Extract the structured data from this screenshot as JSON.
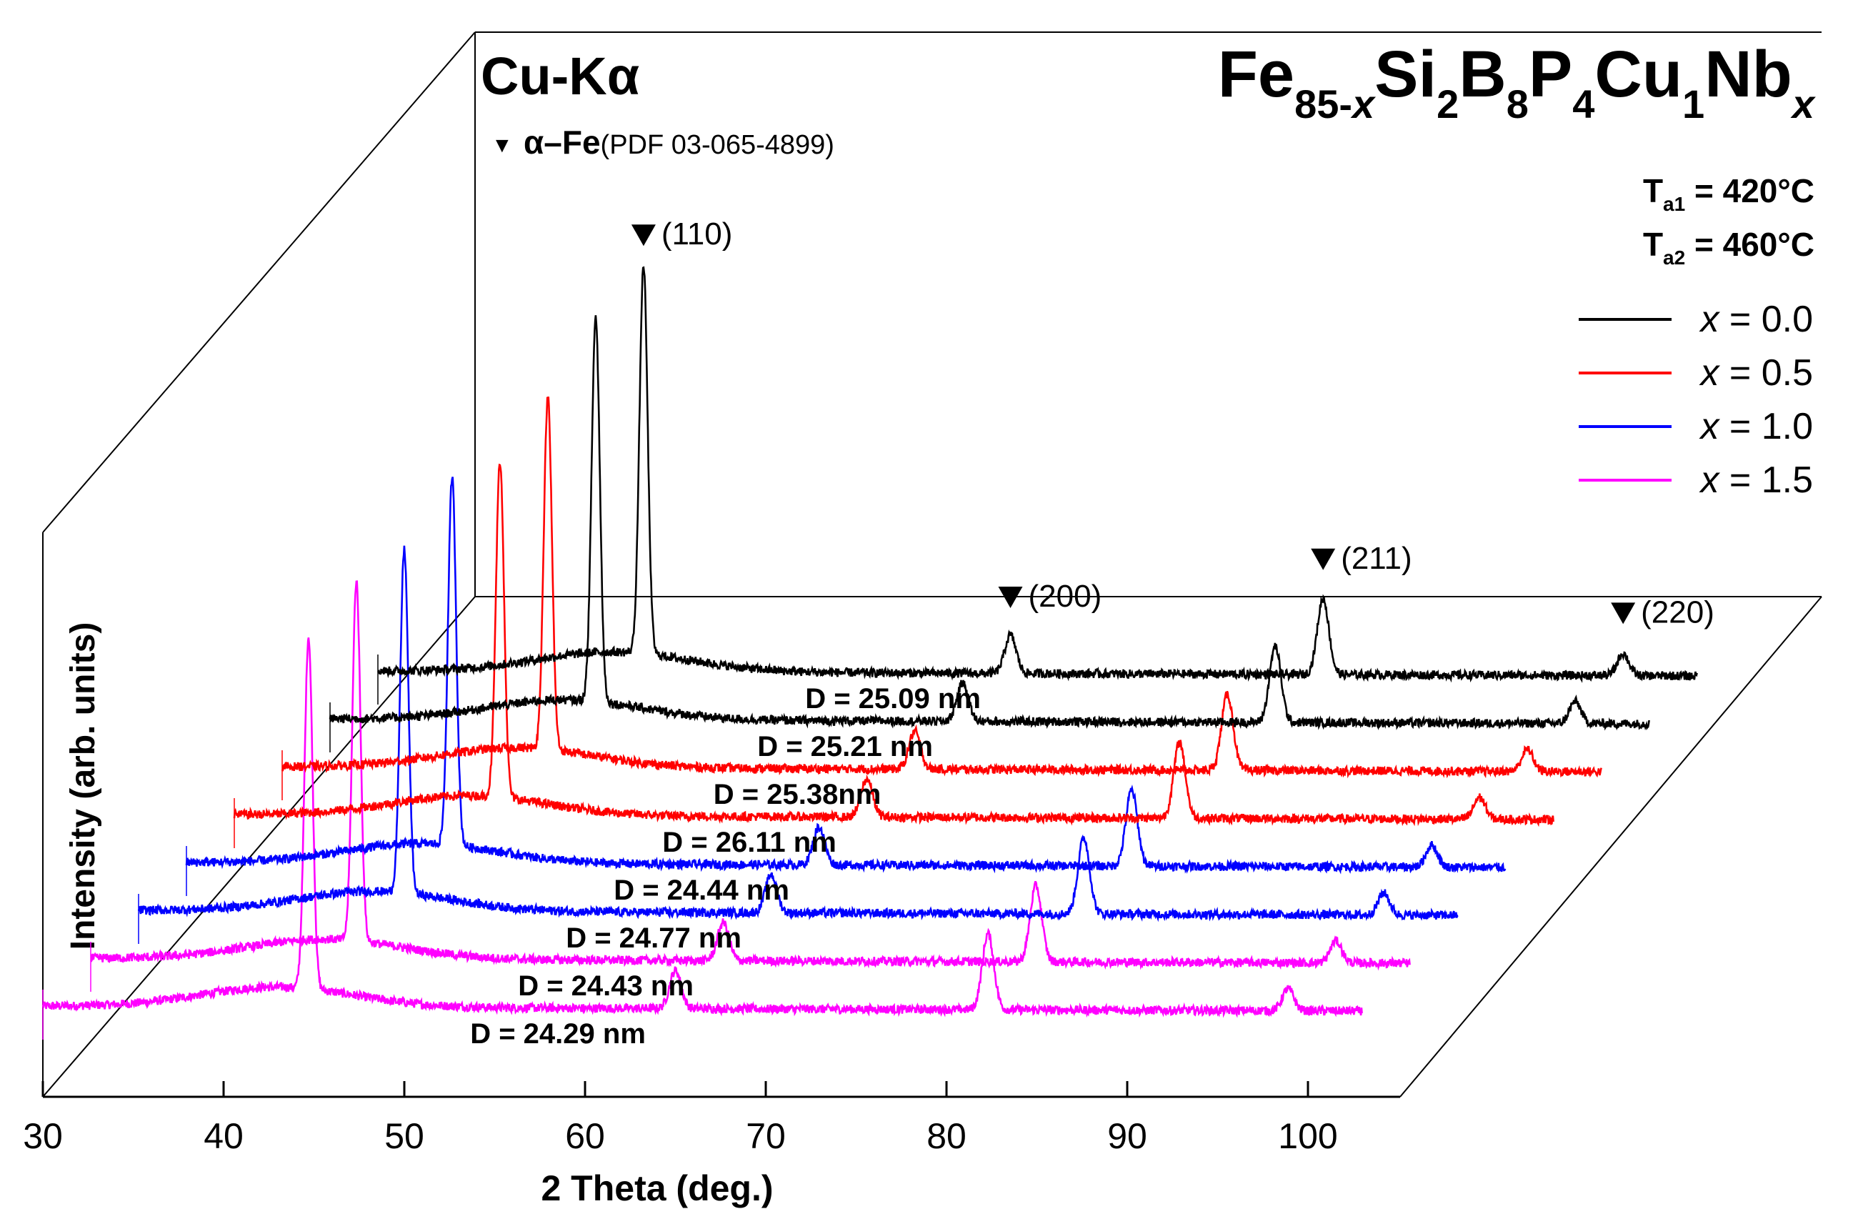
{
  "chart_data": {
    "type": "line",
    "subtype": "waterfall-3d-offset",
    "title": "Fe85-xSi2B8P4Cu1Nbx",
    "radiation": "Cu-Kα",
    "xlabel": "2 Theta (deg.)",
    "ylabel": "Intensity (arb. units)",
    "xlim": [
      30,
      103
    ],
    "xticks": [
      30,
      40,
      50,
      60,
      70,
      80,
      90,
      100
    ],
    "grid": false,
    "composition": {
      "prefix": "Fe",
      "sub1": "85-",
      "sub1_var": "x",
      "el2": "Si",
      "sub2": "2",
      "el3": "B",
      "sub3": "8",
      "el4": "P",
      "sub4": "4",
      "el5": "Cu",
      "sub5": "1",
      "el6": "Nb",
      "sub6": "x"
    },
    "phase_reference": {
      "marker": "▼",
      "name": "α–Fe",
      "pdf": "(PDF 03-065-4899)"
    },
    "annealing": [
      {
        "symbol": "T",
        "sub": "a1",
        "value": " = 420°C"
      },
      {
        "symbol": "T",
        "sub": "a2",
        "value": " = 460°C"
      }
    ],
    "peaks": [
      {
        "hkl": "(110)",
        "two_theta": 44.7,
        "height": 1.0
      },
      {
        "hkl": "(200)",
        "two_theta": 65.0,
        "height": 0.095
      },
      {
        "hkl": "(211)",
        "two_theta": 82.3,
        "height": 0.19
      },
      {
        "hkl": "(220)",
        "two_theta": 98.9,
        "height": 0.055
      }
    ],
    "series": [
      {
        "name": "x = 0.0",
        "legend_var": "x",
        "legend_value": " = 0.0",
        "color": "#000000",
        "crystallite_size": "D = 25.09 nm",
        "peak_scale": 0.97
      },
      {
        "name": "x = 0.0",
        "legend_var": "x",
        "legend_value": " = 0.0",
        "color": "#000000",
        "crystallite_size": "D = 25.21 nm",
        "peak_scale": 0.96
      },
      {
        "name": "x = 0.5",
        "legend_var": "x",
        "legend_value": " = 0.5",
        "color": "#ff0000",
        "crystallite_size": "D = 25.38nm",
        "peak_scale": 0.88
      },
      {
        "name": "x = 0.5",
        "legend_var": "x",
        "legend_value": " = 0.5",
        "color": "#ff0000",
        "crystallite_size": "D = 26.11 nm",
        "peak_scale": 0.84
      },
      {
        "name": "x = 1.0",
        "legend_var": "x",
        "legend_value": " = 1.0",
        "color": "#0000ff",
        "crystallite_size": "D = 24.44 nm",
        "peak_scale": 0.92
      },
      {
        "name": "x = 1.0",
        "legend_var": "x",
        "legend_value": " = 1.0",
        "color": "#0000ff",
        "crystallite_size": "D = 24.77 nm",
        "peak_scale": 0.86
      },
      {
        "name": "x = 1.5",
        "legend_var": "x",
        "legend_value": " = 1.5",
        "color": "#ff00ff",
        "crystallite_size": "D = 24.43 nm",
        "peak_scale": 0.9
      },
      {
        "name": "x = 1.5",
        "legend_var": "x",
        "legend_value": " = 1.5",
        "color": "#ff00ff",
        "crystallite_size": "D = 24.29 nm",
        "peak_scale": 0.88
      }
    ]
  }
}
